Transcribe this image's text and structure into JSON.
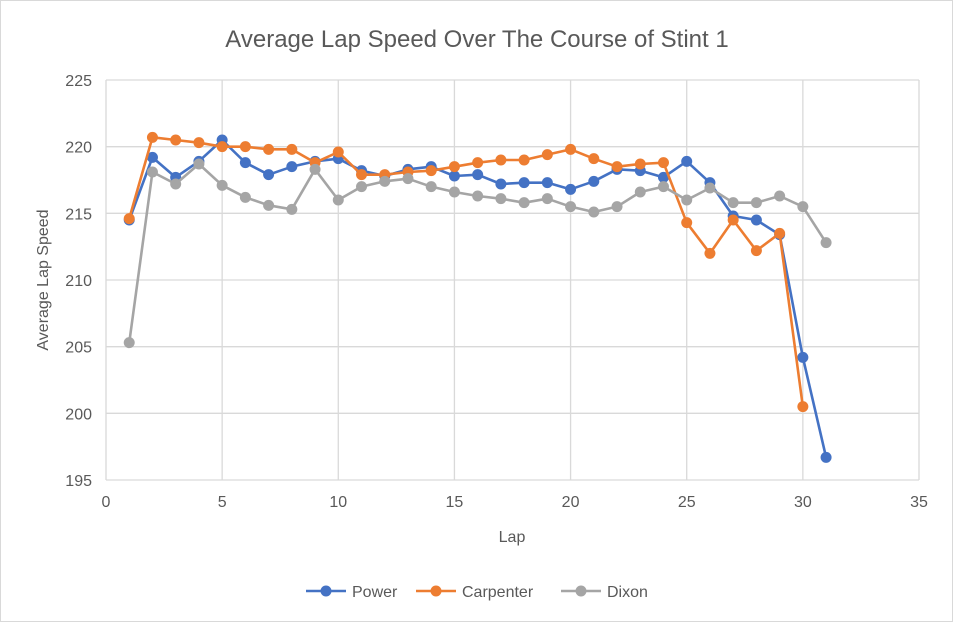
{
  "chart_data": {
    "type": "line",
    "title": "Average Lap Speed Over The Course of Stint 1",
    "xlabel": "Lap",
    "ylabel": "Average Lap Speed",
    "xlim": [
      0,
      35
    ],
    "ylim": [
      195,
      225
    ],
    "xticks": [
      0,
      5,
      10,
      15,
      20,
      25,
      30,
      35
    ],
    "yticks": [
      195,
      200,
      205,
      210,
      215,
      220,
      225
    ],
    "grid": true,
    "legend_position": "bottom",
    "series": [
      {
        "name": "Power",
        "color": "#4472c4",
        "x": [
          1,
          2,
          3,
          4,
          5,
          6,
          7,
          8,
          9,
          10,
          11,
          12,
          13,
          14,
          15,
          16,
          17,
          18,
          19,
          20,
          21,
          22,
          23,
          24,
          25,
          26,
          27,
          28,
          29,
          30,
          31
        ],
        "y": [
          214.5,
          219.2,
          217.7,
          218.9,
          220.5,
          218.8,
          217.9,
          218.5,
          218.9,
          219.1,
          218.2,
          217.8,
          218.3,
          218.5,
          217.8,
          217.9,
          217.2,
          217.3,
          217.3,
          216.8,
          217.4,
          218.3,
          218.2,
          217.7,
          218.9,
          217.3,
          214.8,
          214.5,
          213.4,
          204.2,
          196.7
        ]
      },
      {
        "name": "Carpenter",
        "color": "#ed7d31",
        "x": [
          1,
          2,
          3,
          4,
          5,
          6,
          7,
          8,
          9,
          10,
          11,
          12,
          13,
          14,
          15,
          16,
          17,
          18,
          19,
          20,
          21,
          22,
          23,
          24,
          25,
          26,
          27,
          28,
          29,
          30
        ],
        "y": [
          214.6,
          220.7,
          220.5,
          220.3,
          220.0,
          220.0,
          219.8,
          219.8,
          218.8,
          219.6,
          217.9,
          217.9,
          218.1,
          218.2,
          218.5,
          218.8,
          219.0,
          219.0,
          219.4,
          219.8,
          219.1,
          218.5,
          218.7,
          218.8,
          214.3,
          212.0,
          214.5,
          212.2,
          213.5,
          200.5
        ]
      },
      {
        "name": "Dixon",
        "color": "#a5a5a5",
        "x": [
          1,
          2,
          3,
          4,
          5,
          6,
          7,
          8,
          9,
          10,
          11,
          12,
          13,
          14,
          15,
          16,
          17,
          18,
          19,
          20,
          21,
          22,
          23,
          24,
          25,
          26,
          27,
          28,
          29,
          30,
          31
        ],
        "y": [
          205.3,
          218.1,
          217.2,
          218.7,
          217.1,
          216.2,
          215.6,
          215.3,
          218.3,
          216.0,
          217.0,
          217.4,
          217.6,
          217.0,
          216.6,
          216.3,
          216.1,
          215.8,
          216.1,
          215.5,
          215.1,
          215.5,
          216.6,
          217.0,
          216.0,
          216.9,
          215.8,
          215.8,
          216.3,
          215.5,
          212.8
        ]
      }
    ]
  }
}
